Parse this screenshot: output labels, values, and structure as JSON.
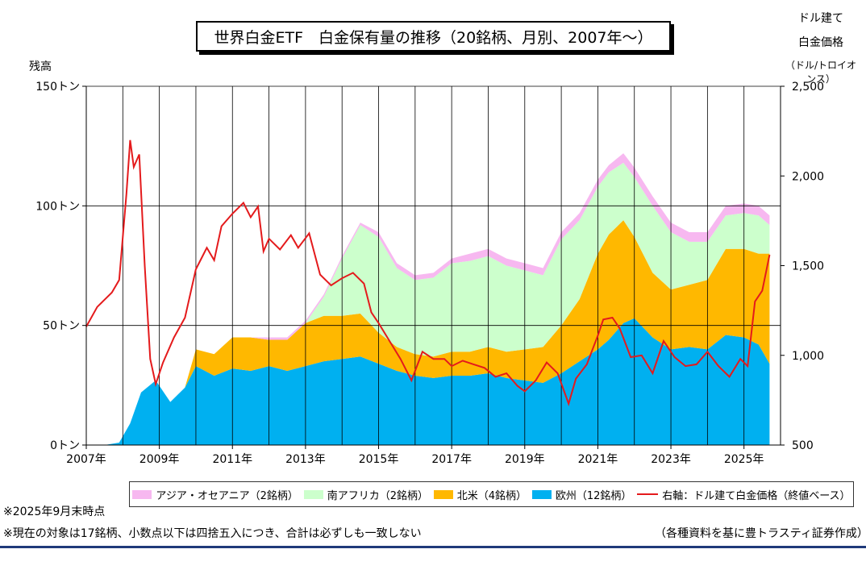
{
  "title": "世界白金ETF　白金保有量の推移（20銘柄、月別、2007年〜）",
  "left_axis_title": "残高",
  "right_axis_title_lines": [
    "ドル建て",
    "白金価格",
    "（ドル/トロイオンス）"
  ],
  "notes": {
    "date": "※2025年9月末時点",
    "disclaimer": "※現在の対象は17銘柄、小数点以下は四捨五入につき、合計は必ずしも一致しない",
    "source": "（各種資料を基に豊トラスティ証券作成）"
  },
  "colors": {
    "asia": "#f7b8f0",
    "safrica": "#ccffcc",
    "namerica": "#ffb800",
    "europe": "#00b0f0",
    "price": "#e41a1c"
  },
  "legend": [
    {
      "key": "asia",
      "label": "アジア・オセアニア（2銘柄）"
    },
    {
      "key": "safrica",
      "label": "南アフリカ（2銘柄）"
    },
    {
      "key": "namerica",
      "label": "北米（4銘柄）"
    },
    {
      "key": "europe",
      "label": "欧州（12銘柄）"
    },
    {
      "key": "price",
      "label": "右軸：ドル建て白金価格（終値ベース）"
    }
  ],
  "chart_data": {
    "type": "area",
    "title": "世界白金ETF　白金保有量の推移（20銘柄、月別、2007年〜）",
    "xlabel": "",
    "ylabel": "残高",
    "y_unit": "トン",
    "y2label": "ドル建て白金価格（ドル/トロイオンス）",
    "ylim": [
      0,
      150
    ],
    "y2lim": [
      500,
      2500
    ],
    "xlim": [
      2007.0,
      2026.0
    ],
    "grid": true,
    "legend_position": "bottom",
    "x_ticks": [
      "2007年",
      "2009年",
      "2011年",
      "2013年",
      "2015年",
      "2017年",
      "2019年",
      "2021年",
      "2023年",
      "2025年"
    ],
    "y_ticks": [
      "0トン",
      "50トン",
      "100トン",
      "150トン"
    ],
    "y2_ticks": [
      "500",
      "1,000",
      "1,500",
      "2,000",
      "2,500"
    ],
    "x": [
      2007.0,
      2007.5,
      2007.9,
      2008.2,
      2008.5,
      2008.9,
      2009.3,
      2009.7,
      2010.0,
      2010.5,
      2011.0,
      2011.5,
      2012.0,
      2012.5,
      2013.0,
      2013.5,
      2014.0,
      2014.5,
      2015.0,
      2015.5,
      2016.0,
      2016.5,
      2017.0,
      2017.5,
      2018.0,
      2018.5,
      2019.0,
      2019.5,
      2020.0,
      2020.5,
      2021.0,
      2021.3,
      2021.7,
      2022.0,
      2022.5,
      2023.0,
      2023.5,
      2024.0,
      2024.5,
      2025.0,
      2025.4,
      2025.7
    ],
    "series": [
      {
        "name": "欧州（12銘柄）",
        "key": "europe",
        "values": [
          0,
          0,
          1,
          9,
          22,
          27,
          18,
          24,
          33,
          29,
          32,
          31,
          33,
          31,
          33,
          35,
          36,
          37,
          34,
          31,
          29,
          28,
          29,
          29,
          30,
          28,
          27,
          26,
          30,
          35,
          40,
          44,
          51,
          53,
          45,
          40,
          41,
          40,
          46,
          45,
          42,
          34
        ]
      },
      {
        "name": "北米（4銘柄）",
        "key": "namerica",
        "values": [
          0,
          0,
          0,
          0,
          0,
          0,
          0,
          0,
          7,
          9,
          13,
          14,
          11,
          13,
          18,
          19,
          18,
          18,
          13,
          10,
          9,
          9,
          10,
          10,
          11,
          11,
          13,
          15,
          20,
          26,
          40,
          44,
          43,
          34,
          27,
          25,
          26,
          29,
          36,
          37,
          38,
          46
        ]
      },
      {
        "name": "南アフリカ（2銘柄）",
        "key": "safrica",
        "values": [
          0,
          0,
          0,
          0,
          0,
          0,
          0,
          0,
          0,
          0,
          0,
          0,
          0,
          0,
          0,
          8,
          24,
          37,
          40,
          33,
          31,
          33,
          37,
          38,
          38,
          36,
          33,
          30,
          36,
          33,
          28,
          26,
          24,
          25,
          28,
          24,
          18,
          16,
          14,
          15,
          16,
          12
        ]
      },
      {
        "name": "アジア・オセアニア（2銘柄）",
        "key": "asia",
        "values": [
          0,
          0,
          0,
          0,
          0,
          0,
          0,
          0,
          0,
          0,
          0,
          0,
          1,
          1,
          1,
          1,
          1,
          1,
          2,
          2,
          2,
          2,
          2,
          3,
          3,
          3,
          3,
          3,
          3,
          3,
          3,
          3,
          4,
          4,
          4,
          4,
          4,
          4,
          4,
          4,
          4,
          4
        ]
      }
    ],
    "price": {
      "name": "右軸：ドル建て白金価格（終値ベース）",
      "x": [
        2007.0,
        2007.3,
        2007.7,
        2007.9,
        2008.1,
        2008.2,
        2008.3,
        2008.45,
        2008.6,
        2008.75,
        2008.9,
        2009.1,
        2009.4,
        2009.7,
        2010.0,
        2010.3,
        2010.5,
        2010.7,
        2011.0,
        2011.3,
        2011.5,
        2011.7,
        2011.85,
        2012.0,
        2012.3,
        2012.6,
        2012.8,
        2013.1,
        2013.4,
        2013.7,
        2014.0,
        2014.3,
        2014.6,
        2014.8,
        2015.0,
        2015.3,
        2015.6,
        2015.9,
        2016.2,
        2016.5,
        2016.8,
        2017.0,
        2017.3,
        2017.6,
        2017.9,
        2018.2,
        2018.5,
        2018.8,
        2019.0,
        2019.3,
        2019.6,
        2019.9,
        2020.2,
        2020.4,
        2020.7,
        2021.0,
        2021.15,
        2021.4,
        2021.6,
        2021.9,
        2022.2,
        2022.5,
        2022.8,
        2023.1,
        2023.4,
        2023.7,
        2024.0,
        2024.3,
        2024.6,
        2024.9,
        2025.1,
        2025.3,
        2025.5,
        2025.7
      ],
      "values": [
        1160,
        1270,
        1350,
        1420,
        1900,
        2200,
        2050,
        2120,
        1500,
        980,
        840,
        960,
        1100,
        1210,
        1480,
        1600,
        1530,
        1720,
        1790,
        1850,
        1770,
        1830,
        1580,
        1650,
        1590,
        1670,
        1600,
        1680,
        1450,
        1390,
        1430,
        1460,
        1400,
        1240,
        1180,
        1080,
        980,
        860,
        1020,
        980,
        980,
        940,
        970,
        950,
        930,
        880,
        900,
        830,
        800,
        860,
        960,
        900,
        730,
        870,
        950,
        1110,
        1200,
        1210,
        1150,
        990,
        1000,
        900,
        1080,
        990,
        940,
        950,
        1020,
        940,
        880,
        980,
        940,
        1300,
        1360,
        1560
      ]
    }
  }
}
